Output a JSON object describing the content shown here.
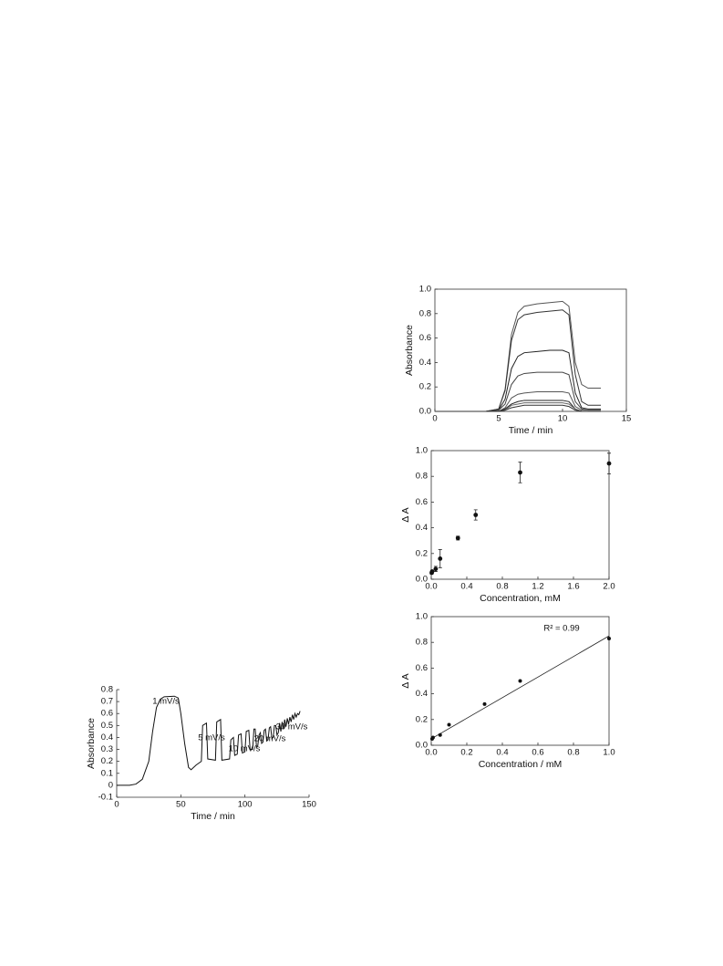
{
  "chart_data": [
    {
      "type": "line",
      "xlabel": "Time / min",
      "ylabel": "Absorbance",
      "xlim": [
        0,
        150
      ],
      "ylim": [
        -0.1,
        0.8
      ],
      "xticks": [
        0,
        50,
        100,
        150
      ],
      "yticks": [
        -0.1,
        0,
        0.1,
        0.2,
        0.3,
        0.4,
        0.5,
        0.6,
        0.7,
        0.8
      ],
      "annotations": [
        "1 mV/s",
        "5 mV/s",
        "10 mV/s",
        "20 mV/s",
        "30 mV/s"
      ],
      "x": [
        0,
        10,
        15,
        20,
        25,
        28,
        31,
        34,
        37,
        45,
        48,
        50,
        53,
        56,
        58,
        62,
        66,
        67,
        70,
        71,
        77,
        78,
        81,
        82,
        88,
        89,
        91,
        92,
        94,
        95,
        97,
        98,
        100,
        101,
        103,
        104,
        106,
        107,
        108,
        109,
        110,
        111,
        112,
        113,
        114,
        115,
        116,
        117,
        118,
        119,
        120,
        121,
        122,
        123,
        124,
        125,
        126,
        127,
        128,
        129,
        130,
        131,
        132,
        133,
        134,
        135,
        136,
        137,
        138,
        139,
        140,
        141,
        142,
        143
      ],
      "series": [
        {
          "color": "#111",
          "values": [
            0,
            0,
            0.01,
            0.05,
            0.2,
            0.45,
            0.65,
            0.72,
            0.74,
            0.745,
            0.73,
            0.6,
            0.35,
            0.15,
            0.13,
            0.17,
            0.2,
            0.5,
            0.52,
            0.22,
            0.21,
            0.53,
            0.55,
            0.21,
            0.22,
            0.38,
            0.4,
            0.25,
            0.26,
            0.42,
            0.43,
            0.27,
            0.28,
            0.45,
            0.46,
            0.3,
            0.3,
            0.47,
            0.47,
            0.32,
            0.33,
            0.42,
            0.44,
            0.35,
            0.36,
            0.46,
            0.47,
            0.37,
            0.38,
            0.48,
            0.49,
            0.39,
            0.4,
            0.5,
            0.5,
            0.42,
            0.44,
            0.52,
            0.45,
            0.53,
            0.47,
            0.55,
            0.49,
            0.56,
            0.51,
            0.57,
            0.53,
            0.59,
            0.55,
            0.6,
            0.57,
            0.6,
            0.59,
            0.62
          ]
        }
      ]
    },
    {
      "type": "line",
      "xlabel": "Time / min",
      "ylabel": "Absorbance",
      "xlim": [
        0,
        15
      ],
      "ylim": [
        0,
        1
      ],
      "xticks": [
        0,
        5,
        10,
        15
      ],
      "yticks": [
        {
          "value": 0,
          "label": "0.0"
        },
        0.2,
        0.4,
        0.6,
        0.8,
        {
          "value": 1,
          "label": "1.0"
        }
      ],
      "x": [
        0,
        4,
        5,
        5.5,
        6,
        6.5,
        7,
        8,
        9,
        10,
        10.5,
        11,
        11.5,
        12,
        13
      ],
      "series": [
        {
          "color": "#555",
          "values": [
            0,
            0,
            0.02,
            0.18,
            0.63,
            0.81,
            0.86,
            0.88,
            0.89,
            0.9,
            0.86,
            0.4,
            0.22,
            0.19,
            0.19
          ]
        },
        {
          "color": "#333",
          "values": [
            0,
            0,
            0.02,
            0.17,
            0.58,
            0.75,
            0.79,
            0.81,
            0.82,
            0.83,
            0.79,
            0.3,
            0.08,
            0.05,
            0.05
          ]
        },
        {
          "color": "#222",
          "values": [
            0,
            0,
            0.01,
            0.1,
            0.35,
            0.45,
            0.48,
            0.49,
            0.5,
            0.5,
            0.48,
            0.15,
            0.03,
            0.02,
            0.02
          ]
        },
        {
          "color": "#444",
          "values": [
            0,
            0,
            0.01,
            0.06,
            0.22,
            0.29,
            0.31,
            0.32,
            0.32,
            0.32,
            0.3,
            0.08,
            0.02,
            0.01,
            0.01
          ]
        },
        {
          "color": "#555",
          "values": [
            0,
            0,
            0,
            0.03,
            0.11,
            0.14,
            0.15,
            0.16,
            0.16,
            0.16,
            0.15,
            0.04,
            0.01,
            0.01,
            0.01
          ]
        },
        {
          "color": "#222",
          "values": [
            0,
            0,
            0,
            0.02,
            0.06,
            0.08,
            0.09,
            0.09,
            0.09,
            0.09,
            0.08,
            0.02,
            0,
            0,
            0
          ]
        },
        {
          "color": "#666",
          "values": [
            0,
            0,
            0,
            0.01,
            0.05,
            0.06,
            0.07,
            0.07,
            0.07,
            0.07,
            0.06,
            0.02,
            0,
            0,
            0
          ]
        },
        {
          "color": "#333",
          "values": [
            0,
            0,
            0,
            0.01,
            0.03,
            0.04,
            0.05,
            0.05,
            0.05,
            0.05,
            0.04,
            0.01,
            0,
            0,
            0
          ]
        }
      ]
    },
    {
      "type": "scatter",
      "xlabel": "Concentration, mM",
      "ylabel": "Δ A",
      "xlim": [
        0,
        2
      ],
      "ylim": [
        0,
        1
      ],
      "xticks": [
        {
          "value": 0,
          "label": "0.0"
        },
        0.4,
        0.8,
        1.2,
        1.6,
        {
          "value": 2,
          "label": "2.0"
        }
      ],
      "yticks": [
        {
          "value": 0,
          "label": "0.0"
        },
        0.2,
        0.4,
        0.6,
        0.8,
        {
          "value": 1,
          "label": "1.0"
        }
      ],
      "x": [
        0.005,
        0.01,
        0.05,
        0.1,
        0.3,
        0.5,
        1.0,
        2.0
      ],
      "values": [
        0.05,
        0.06,
        0.08,
        0.16,
        0.32,
        0.5,
        0.83,
        0.9
      ],
      "errors": [
        0.01,
        0.01,
        0.02,
        0.07,
        0.015,
        0.04,
        0.08,
        0.08
      ],
      "color": "#111"
    },
    {
      "type": "scatter",
      "xlabel": "Concentration / mM",
      "ylabel": "Δ A",
      "xlim": [
        0,
        1
      ],
      "ylim": [
        0,
        1
      ],
      "xticks": [
        {
          "value": 0,
          "label": "0.0"
        },
        0.2,
        0.4,
        0.6,
        0.8,
        {
          "value": 1,
          "label": "1.0"
        }
      ],
      "yticks": [
        {
          "value": 0,
          "label": "0.0"
        },
        0.2,
        0.4,
        0.6,
        0.8,
        {
          "value": 1,
          "label": "1.0"
        }
      ],
      "annotations": [
        "R² = 0.99"
      ],
      "x": [
        0.005,
        0.01,
        0.05,
        0.1,
        0.3,
        0.5,
        1.0
      ],
      "values": [
        0.05,
        0.06,
        0.08,
        0.16,
        0.32,
        0.5,
        0.83
      ],
      "fit_line": {
        "x": [
          0,
          1
        ],
        "values": [
          0.05,
          0.85
        ]
      },
      "color": "#111"
    }
  ]
}
